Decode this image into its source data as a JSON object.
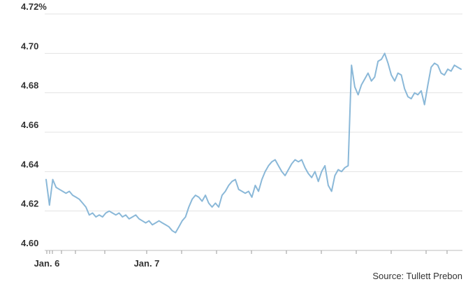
{
  "chart_data": {
    "type": "line",
    "title": "",
    "xlabel": "",
    "ylabel": "",
    "ylim": [
      4.6,
      4.72
    ],
    "y_ticks": [
      {
        "value": 4.72,
        "label": "4.72%"
      },
      {
        "value": 4.7,
        "label": "4.70"
      },
      {
        "value": 4.68,
        "label": "4.68"
      },
      {
        "value": 4.66,
        "label": "4.66"
      },
      {
        "value": 4.64,
        "label": "4.64"
      },
      {
        "value": 4.62,
        "label": "4.62"
      },
      {
        "value": 4.6,
        "label": "4.60"
      }
    ],
    "x_labels": [
      {
        "label": "Jan. 6",
        "position": 0.0
      },
      {
        "label": "Jan. 7",
        "position": 0.24
      }
    ],
    "grid": true,
    "line_color": "#8ab8d8",
    "series": [
      {
        "values": [
          4.636,
          4.623,
          4.636,
          4.632,
          4.631,
          4.63,
          4.629,
          4.63,
          4.628,
          4.627,
          4.626,
          4.624,
          4.622,
          4.618,
          4.619,
          4.617,
          4.618,
          4.617,
          4.619,
          4.62,
          4.619,
          4.618,
          4.619,
          4.617,
          4.618,
          4.616,
          4.617,
          4.618,
          4.616,
          4.615,
          4.614,
          4.615,
          4.613,
          4.614,
          4.615,
          4.614,
          4.613,
          4.612,
          4.61,
          4.609,
          4.612,
          4.615,
          4.617,
          4.622,
          4.626,
          4.628,
          4.627,
          4.625,
          4.628,
          4.624,
          4.622,
          4.624,
          4.622,
          4.628,
          4.63,
          4.633,
          4.635,
          4.636,
          4.631,
          4.63,
          4.629,
          4.63,
          4.627,
          4.633,
          4.63,
          4.636,
          4.64,
          4.643,
          4.645,
          4.646,
          4.643,
          4.64,
          4.638,
          4.641,
          4.644,
          4.646,
          4.645,
          4.646,
          4.642,
          4.639,
          4.637,
          4.64,
          4.635,
          4.64,
          4.643,
          4.633,
          4.63,
          4.638,
          4.641,
          4.64,
          4.642,
          4.643,
          4.694,
          4.683,
          4.679,
          4.684,
          4.687,
          4.69,
          4.686,
          4.688,
          4.696,
          4.697,
          4.7,
          4.695,
          4.689,
          4.686,
          4.69,
          4.689,
          4.682,
          4.678,
          4.677,
          4.68,
          4.679,
          4.681,
          4.674,
          4.684,
          4.693,
          4.695,
          4.694,
          4.69,
          4.689,
          4.692,
          4.691,
          4.694,
          4.693,
          4.692
        ]
      }
    ],
    "source": "Source: Tullett Prebon"
  }
}
